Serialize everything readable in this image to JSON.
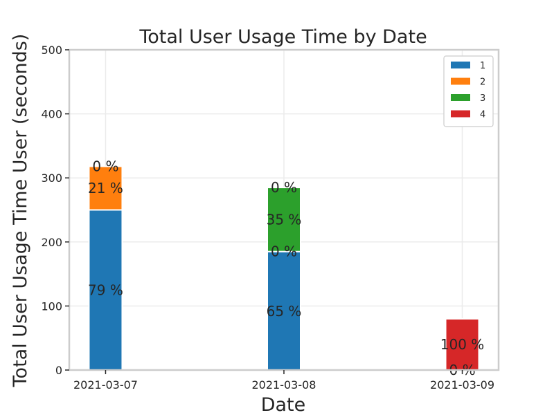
{
  "chart_data": {
    "type": "bar",
    "stacked": true,
    "title": "Total User Usage Time by Date",
    "xlabel": "Date",
    "ylabel": "Total User Usage Time User (seconds)",
    "categories": [
      "2021-03-07",
      "2021-03-08",
      "2021-03-09"
    ],
    "ylim": [
      0,
      500
    ],
    "yticks": [
      0,
      100,
      200,
      300,
      400,
      500
    ],
    "grid": true,
    "legend_position": "top-right",
    "series": [
      {
        "name": "1",
        "color": "#1f77b4",
        "values": [
          250,
          185,
          0
        ]
      },
      {
        "name": "2",
        "color": "#ff7f0e",
        "values": [
          68,
          0,
          0
        ]
      },
      {
        "name": "3",
        "color": "#2ca02c",
        "values": [
          0,
          100,
          0
        ]
      },
      {
        "name": "4",
        "color": "#d62728",
        "values": [
          0,
          0,
          80
        ]
      }
    ],
    "data_labels": [
      {
        "category": 0,
        "y": 125,
        "text": "79 %"
      },
      {
        "category": 0,
        "y": 284,
        "text": "21 %"
      },
      {
        "category": 0,
        "y": 318,
        "text": "0 %"
      },
      {
        "category": 1,
        "y": 92,
        "text": "65 %"
      },
      {
        "category": 1,
        "y": 185,
        "text": "0 %"
      },
      {
        "category": 1,
        "y": 235,
        "text": "35 %"
      },
      {
        "category": 1,
        "y": 285,
        "text": "0 %"
      },
      {
        "category": 2,
        "y": 40,
        "text": "100 %"
      },
      {
        "category": 2,
        "y": 0,
        "text": "0 %"
      }
    ]
  }
}
